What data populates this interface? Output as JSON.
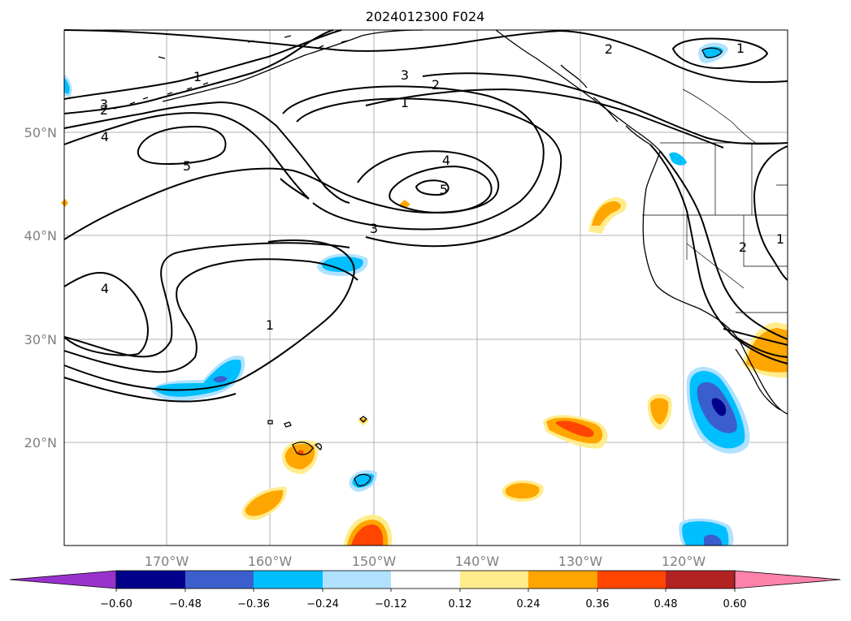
{
  "title": "2024012300 F024",
  "lat_labels": [
    "50°N",
    "40°N",
    "30°N",
    "20°N"
  ],
  "lon_labels": [
    "170°W",
    "160°W",
    "150°W",
    "140°W",
    "130°W",
    "120°W"
  ],
  "colorbar": {
    "ticks": [
      "−0.60",
      "−0.48",
      "−0.36",
      "−0.24",
      "−0.12",
      "0.12",
      "0.24",
      "0.36",
      "0.48",
      "0.60"
    ],
    "colors": [
      "#9932cc",
      "#00008b",
      "#3a5fcd",
      "#00bfff",
      "#b0e2ff",
      "#ffffff",
      "#ffec8b",
      "#ffa500",
      "#ff4500",
      "#b22222",
      "#ff82ab"
    ]
  },
  "contour_labels": [
    "1",
    "2",
    "3",
    "4",
    "5",
    "1",
    "2",
    "3",
    "4",
    "5",
    "1",
    "2",
    "3",
    "4",
    "1",
    "2",
    "1"
  ],
  "colors": {
    "coast": "#000000",
    "grid": "#b0b0b0",
    "axis_labels": "#808080"
  }
}
